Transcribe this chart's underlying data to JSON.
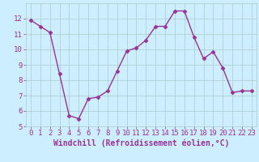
{
  "x": [
    0,
    1,
    2,
    3,
    4,
    5,
    6,
    7,
    8,
    9,
    10,
    11,
    12,
    13,
    14,
    15,
    16,
    17,
    18,
    19,
    20,
    21,
    22,
    23
  ],
  "y": [
    11.9,
    11.5,
    11.1,
    8.4,
    5.7,
    5.5,
    6.8,
    6.9,
    7.3,
    8.6,
    9.9,
    10.1,
    10.6,
    11.5,
    11.5,
    12.5,
    12.5,
    10.8,
    9.4,
    9.85,
    8.8,
    7.2,
    7.3,
    7.3
  ],
  "line_color": "#993399",
  "marker": "D",
  "marker_size": 2.5,
  "line_width": 1.0,
  "bg_color": "#cceeff",
  "grid_color": "#aacccc",
  "xlabel": "Windchill (Refroidissement éolien,°C)",
  "xlabel_color": "#993399",
  "xlabel_fontsize": 7,
  "tick_color": "#993399",
  "tick_fontsize": 6.5,
  "ylim": [
    5,
    13
  ],
  "xlim": [
    -0.5,
    23.5
  ],
  "yticks": [
    5,
    6,
    7,
    8,
    9,
    10,
    11,
    12
  ],
  "xticks": [
    0,
    1,
    2,
    3,
    4,
    5,
    6,
    7,
    8,
    9,
    10,
    11,
    12,
    13,
    14,
    15,
    16,
    17,
    18,
    19,
    20,
    21,
    22,
    23
  ]
}
